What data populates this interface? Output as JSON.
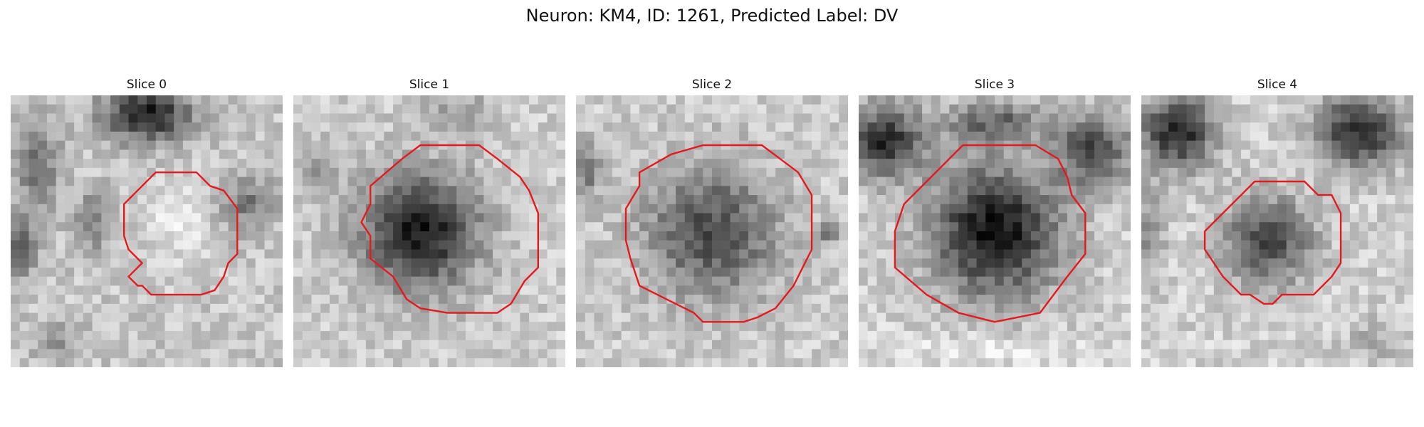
{
  "figure": {
    "title": "Neuron: KM4, ID: 1261, Predicted Label: DV",
    "contour_color": "#e41a1c"
  },
  "panels": [
    {
      "title": "Slice 0"
    },
    {
      "title": "Slice 1"
    },
    {
      "title": "Slice 2"
    },
    {
      "title": "Slice 3"
    },
    {
      "title": "Slice 4"
    }
  ]
}
